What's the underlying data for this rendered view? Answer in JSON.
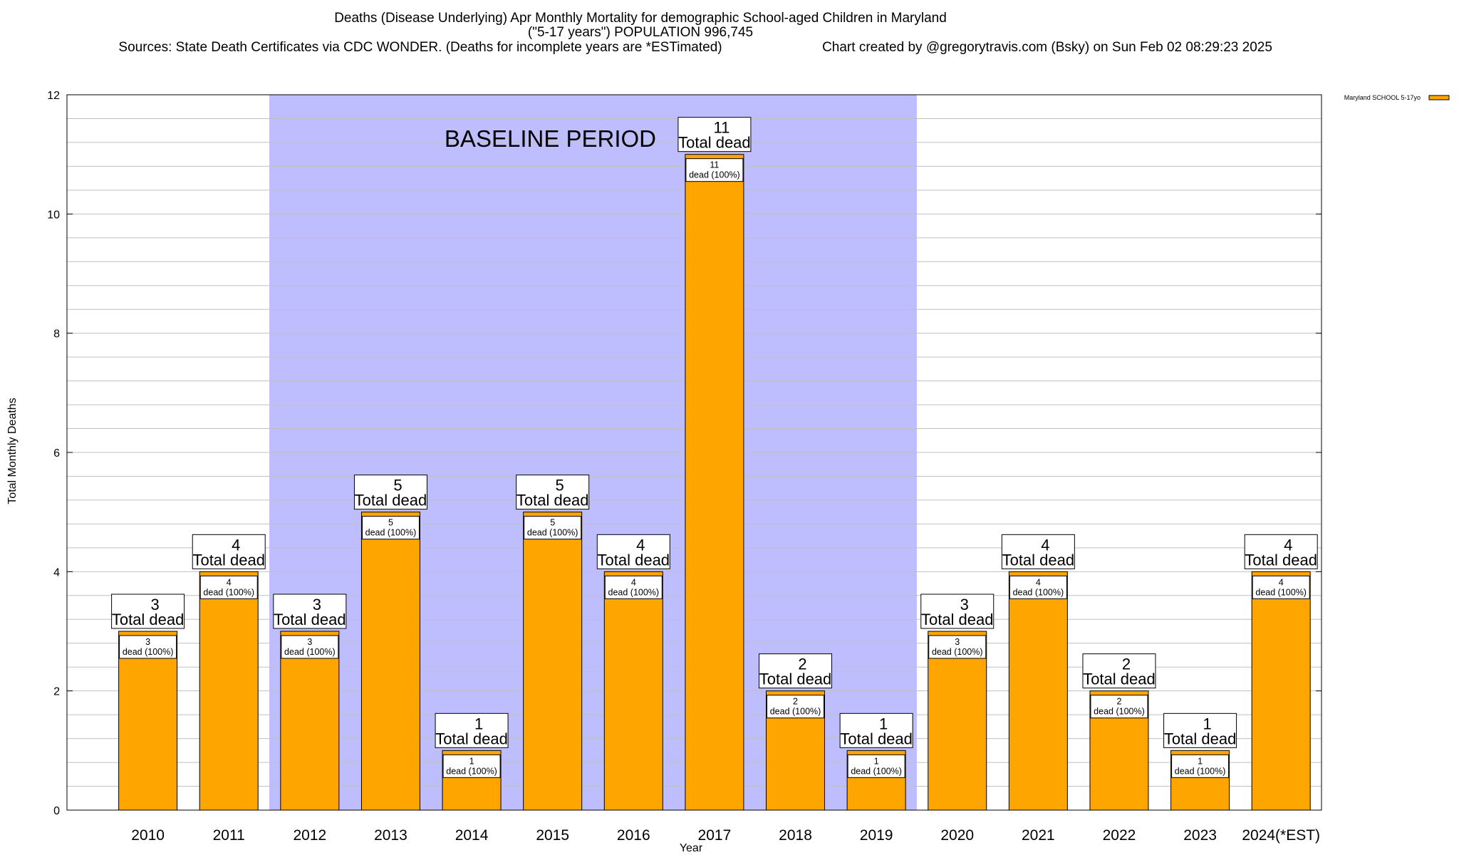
{
  "title": {
    "line1": "Deaths (Disease Underlying) Apr Monthly Mortality for demographic School-aged Children in Maryland",
    "line2": "(\"5-17 years\") POPULATION 996,745",
    "sources": "Sources: State Death Certificates via CDC WONDER. (Deaths for incomplete years are *ESTimated)",
    "credit": "Chart created by @gregorytravis.com (Bsky) on Sun Feb 02 08:29:23 2025"
  },
  "labels": {
    "total_dead": "Total dead",
    "dead_pct": "dead (100%)"
  },
  "colors": {
    "bar": "#ffa500",
    "baseline": "#bebeff",
    "grid": "#c0c0c0"
  },
  "chart_data": {
    "type": "bar",
    "title": "Deaths (Disease Underlying) Apr Monthly Mortality for demographic School-aged Children in Maryland",
    "xlabel": "Year",
    "ylabel": "Total Monthly Deaths",
    "ylim": [
      0,
      12
    ],
    "yticks": [
      0,
      2,
      4,
      6,
      8,
      10,
      12
    ],
    "grid": true,
    "legend_position": "top-right",
    "categories": [
      "2010",
      "2011",
      "2012",
      "2013",
      "2014",
      "2015",
      "2016",
      "2017",
      "2018",
      "2019",
      "2020",
      "2021",
      "2022",
      "2023",
      "2024(*EST)"
    ],
    "series": [
      {
        "name": "Maryland SCHOOL 5-17yo",
        "values": [
          3,
          4,
          3,
          5,
          1,
          5,
          4,
          11,
          2,
          1,
          3,
          4,
          2,
          1,
          4
        ]
      }
    ],
    "annotations": {
      "baseline_label": "BASELINE PERIOD",
      "baseline_categories": [
        "2012",
        "2019"
      ]
    }
  }
}
